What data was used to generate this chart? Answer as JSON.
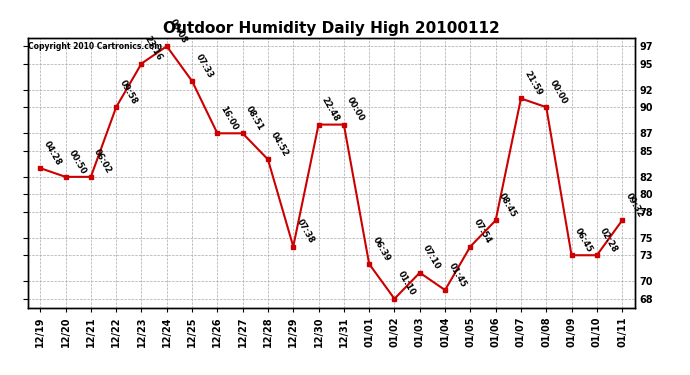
{
  "title": "Outdoor Humidity Daily High 20100112",
  "copyright": "Copyright 2010 Cartronics.com",
  "x_labels": [
    "12/19",
    "12/20",
    "12/21",
    "12/22",
    "12/23",
    "12/24",
    "12/25",
    "12/26",
    "12/27",
    "12/28",
    "12/29",
    "12/30",
    "12/31",
    "01/01",
    "01/02",
    "01/03",
    "01/04",
    "01/05",
    "01/06",
    "01/07",
    "01/08",
    "01/09",
    "01/10",
    "01/11"
  ],
  "y_values": [
    83,
    82,
    82,
    90,
    95,
    97,
    93,
    87,
    87,
    84,
    74,
    88,
    88,
    72,
    68,
    71,
    69,
    74,
    77,
    91,
    90,
    73,
    73,
    77
  ],
  "time_labels": [
    "04:28",
    "00:50",
    "06:02",
    "09:58",
    "23:16",
    "00:08",
    "07:33",
    "16:00",
    "08:51",
    "04:52",
    "07:38",
    "22:48",
    "00:00",
    "06:39",
    "01:10",
    "07:10",
    "01:45",
    "07:54",
    "08:45",
    "21:59",
    "00:00",
    "06:45",
    "02:28",
    "09:32"
  ],
  "y_ticks": [
    68,
    70,
    73,
    75,
    78,
    80,
    82,
    85,
    87,
    90,
    92,
    95,
    97
  ],
  "ylim": [
    67,
    98
  ],
  "line_color": "#cc0000",
  "marker_color": "#cc0000",
  "background_color": "#ffffff",
  "grid_color": "#aaaaaa",
  "title_fontsize": 11,
  "annotation_fontsize": 6.0,
  "tick_fontsize": 7.0,
  "copyright_fontsize": 5.5
}
